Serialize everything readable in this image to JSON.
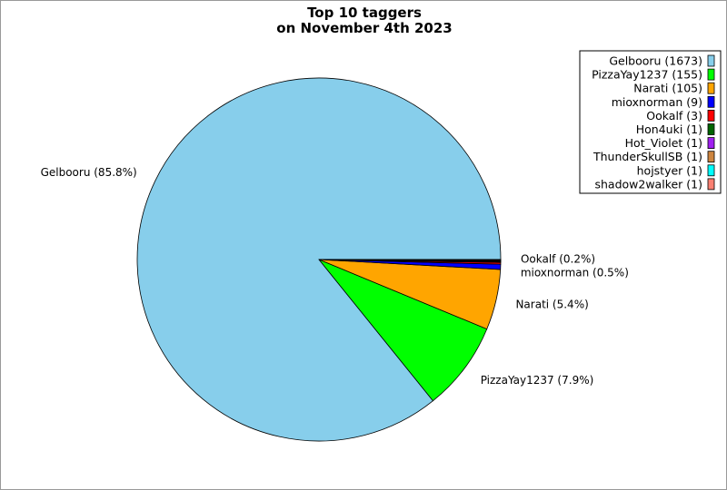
{
  "chart_data": {
    "type": "pie",
    "title_lines": [
      "Top 10 taggers",
      "on November 4th 2023"
    ],
    "start_angle_deg": 0,
    "direction": "counterclockwise",
    "legend_position": "top-right",
    "slices": [
      {
        "name": "Gelbooru",
        "value": 1673,
        "legend": "Gelbooru (1673)",
        "label": "Gelbooru (85.8%)",
        "color": "#87CEEB"
      },
      {
        "name": "PizzaYay1237",
        "value": 155,
        "legend": "PizzaYay1237 (155)",
        "label": "PizzaYay1237 (7.9%)",
        "color": "#00FF00"
      },
      {
        "name": "Narati",
        "value": 105,
        "legend": "Narati (105)",
        "label": "Narati (5.4%)",
        "color": "#FFA500"
      },
      {
        "name": "mioxnorman",
        "value": 9,
        "legend": "mioxnorman (9)",
        "label": "mioxnorman (0.5%)",
        "color": "#0000FF"
      },
      {
        "name": "Ookalf",
        "value": 3,
        "legend": "Ookalf (3)",
        "label": "Ookalf (0.2%)",
        "color": "#FF0000"
      },
      {
        "name": "Hon4uki",
        "value": 1,
        "legend": "Hon4uki (1)",
        "label": "",
        "color": "#006400"
      },
      {
        "name": "Hot_Violet",
        "value": 1,
        "legend": "Hot_Violet (1)",
        "label": "",
        "color": "#A020F0"
      },
      {
        "name": "ThunderSkullSB",
        "value": 1,
        "legend": "ThunderSkullSB (1)",
        "label": "",
        "color": "#CD853F"
      },
      {
        "name": "hojstyer",
        "value": 1,
        "legend": "hojstyer (1)",
        "label": "",
        "color": "#00FFFF"
      },
      {
        "name": "shadow2walker",
        "value": 1,
        "legend": "shadow2walker (1)",
        "label": "",
        "color": "#FA8072"
      }
    ]
  }
}
